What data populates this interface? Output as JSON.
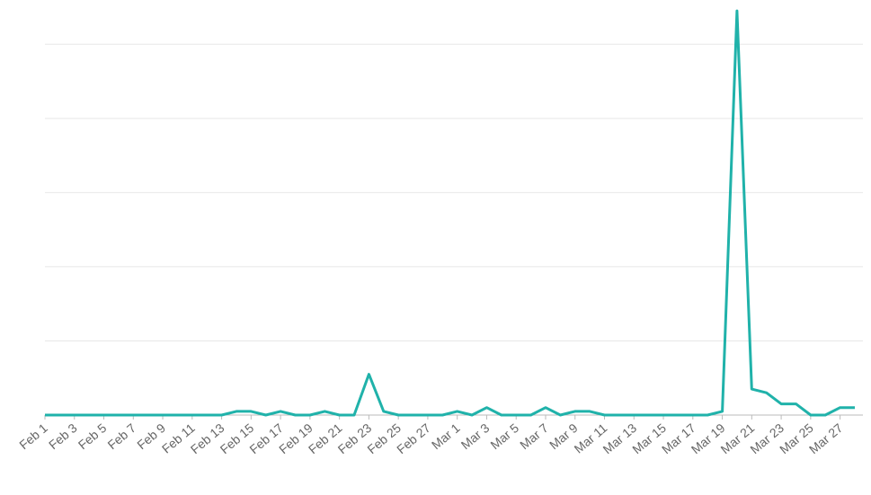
{
  "chart_data": {
    "type": "line",
    "categories": [
      "Feb 1",
      null,
      "Feb 3",
      null,
      "Feb 5",
      null,
      "Feb 7",
      null,
      "Feb 9",
      null,
      "Feb 11",
      null,
      "Feb 13",
      null,
      "Feb 15",
      null,
      "Feb 17",
      null,
      "Feb 19",
      null,
      "Feb 21",
      null,
      "Feb 23",
      null,
      "Feb 25",
      null,
      "Feb 27",
      null,
      "Mar 1",
      null,
      "Mar 3",
      null,
      "Mar 5",
      null,
      "Mar 7",
      null,
      "Mar 9",
      null,
      "Mar 11",
      null,
      "Mar 13",
      null,
      "Mar 15",
      null,
      "Mar 17",
      null,
      "Mar 19",
      null,
      "Mar 21",
      null,
      "Mar 23",
      null,
      "Mar 25",
      null,
      "Mar 27",
      null
    ],
    "series": [
      {
        "color": "#20b2aa",
        "values": [
          0,
          0,
          0,
          0,
          0,
          0,
          0,
          0,
          0,
          0,
          0,
          0,
          0,
          1,
          1,
          0,
          1,
          0,
          0,
          1,
          0,
          0,
          11,
          1,
          0,
          0,
          0,
          0,
          1,
          0,
          2,
          0,
          0,
          0,
          2,
          0,
          1,
          1,
          0,
          0,
          0,
          0,
          0,
          0,
          0,
          0,
          1,
          109,
          7,
          6,
          3,
          3,
          0,
          0,
          2,
          2
        ]
      }
    ],
    "ylim": [
      0,
      110
    ],
    "yticks": [
      0,
      20,
      40,
      60,
      80,
      100
    ],
    "grid": true
  }
}
